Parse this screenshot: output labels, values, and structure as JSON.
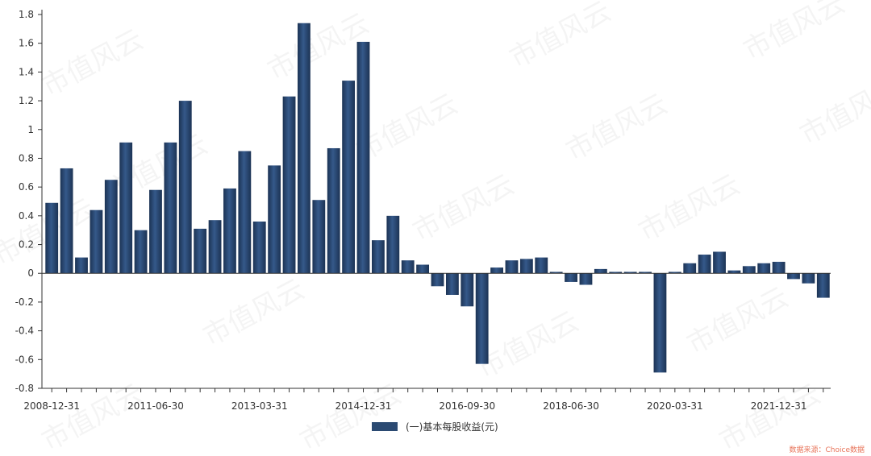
{
  "chart_data": {
    "type": "bar",
    "title": "",
    "xlabel": "",
    "ylabel": "",
    "ylim": [
      -0.8,
      1.8
    ],
    "y_ticks": [
      -0.8,
      -0.6,
      -0.4,
      -0.2,
      0,
      0.2,
      0.4,
      0.6,
      0.8,
      1,
      1.2,
      1.4,
      1.6,
      1.8
    ],
    "y_tick_labels": [
      "-0.8",
      "-0.6",
      "-0.4",
      "-0.2",
      "0",
      "0.2",
      "0.4",
      "0.6",
      "0.8",
      "1",
      "1.2",
      "1.4",
      "1.6",
      "1.8"
    ],
    "x_tick_labels": [
      {
        "index": 0,
        "label": "2008-12-31"
      },
      {
        "index": 7,
        "label": "2011-06-30"
      },
      {
        "index": 14,
        "label": "2013-03-31"
      },
      {
        "index": 21,
        "label": "2014-12-31"
      },
      {
        "index": 28,
        "label": "2016-09-30"
      },
      {
        "index": 35,
        "label": "2018-06-30"
      },
      {
        "index": 42,
        "label": "2020-03-31"
      },
      {
        "index": 49,
        "label": "2021-12-31"
      }
    ],
    "grid": false,
    "legend_position": "bottom-center",
    "bar_color": "#2b4a72",
    "series": [
      {
        "name": "(一)基本每股收益(元)",
        "values": [
          0.49,
          0.73,
          0.11,
          0.44,
          0.65,
          0.91,
          0.3,
          0.58,
          0.91,
          1.2,
          0.31,
          0.37,
          0.59,
          0.85,
          0.36,
          0.75,
          1.23,
          1.74,
          0.51,
          0.87,
          1.34,
          1.61,
          0.23,
          0.4,
          0.09,
          0.06,
          -0.09,
          -0.15,
          -0.23,
          -0.63,
          0.04,
          0.09,
          0.1,
          0.11,
          0.01,
          -0.06,
          -0.08,
          0.03,
          0.01,
          0.01,
          0.01,
          -0.69,
          0.01,
          0.07,
          0.13,
          0.15,
          0.02,
          0.05,
          0.07,
          0.08,
          -0.04,
          -0.07,
          -0.17
        ]
      }
    ]
  },
  "watermark": "市值风云",
  "source_note": "数据来源：Choice数据"
}
